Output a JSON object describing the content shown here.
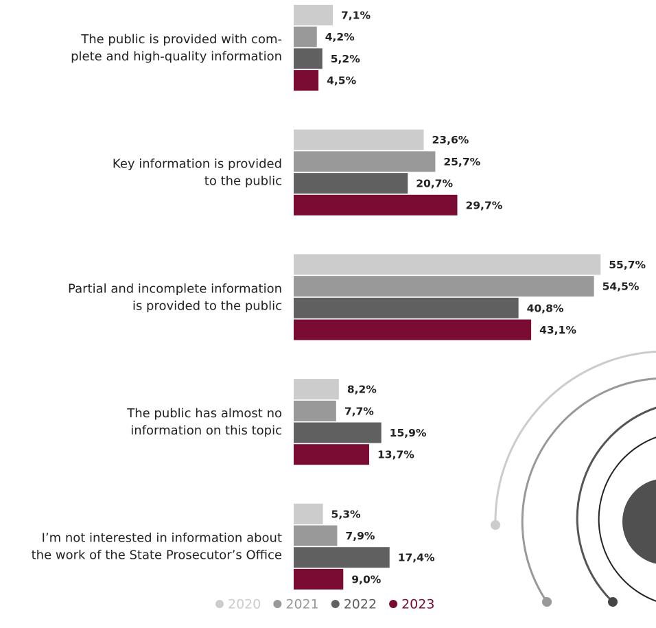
{
  "chart_data": {
    "type": "bar",
    "orientation": "horizontal",
    "categories": [
      [
        "The public is provided with com-",
        "plete and high-quality information"
      ],
      [
        "Key information is provided",
        "to the public"
      ],
      [
        "Partial and incomplete information",
        "is provided to the public"
      ],
      [
        "The public has almost no",
        "information on this topic"
      ],
      [
        "I’m not interested in information about",
        "the work of the State Prosecutor’s Office"
      ]
    ],
    "series": [
      {
        "name": "2020",
        "color": "#cccccc",
        "values": [
          7.1,
          23.6,
          55.7,
          8.2,
          5.3
        ],
        "value_labels": [
          "7,1%",
          "23,6%",
          "55,7%",
          "8,2%",
          "5,3%"
        ]
      },
      {
        "name": "2021",
        "color": "#999999",
        "values": [
          4.2,
          25.7,
          54.5,
          7.7,
          7.9
        ],
        "value_labels": [
          "4,2%",
          "25,7%",
          "54,5%",
          "7,7%",
          "7,9%"
        ]
      },
      {
        "name": "2022",
        "color": "#606060",
        "values": [
          5.2,
          20.7,
          40.8,
          15.9,
          17.4
        ],
        "value_labels": [
          "5,2%",
          "20,7%",
          "40,8%",
          "15,9%",
          "17,4%"
        ]
      },
      {
        "name": "2023",
        "color": "#7a0c33",
        "values": [
          4.5,
          29.7,
          43.1,
          13.7,
          9.0
        ],
        "value_labels": [
          "4,5%",
          "29,7%",
          "43,1%",
          "13,7%",
          "9,0%"
        ]
      }
    ]
  }
}
